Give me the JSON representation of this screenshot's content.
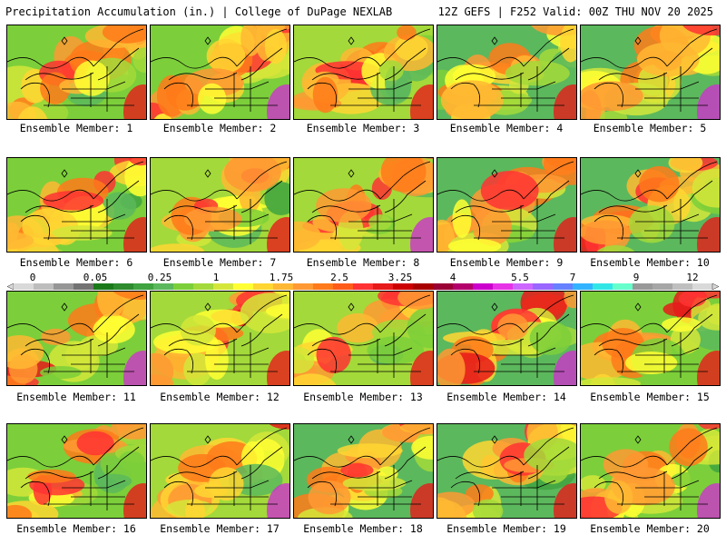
{
  "header": {
    "left": "Precipitation Accumulation (in.) | College of DuPage NEXLAB",
    "right": "12Z GEFS | F252 Valid: 00Z THU NOV 20 2025"
  },
  "colorbar": {
    "labels": [
      "0",
      "0.05",
      "0.25",
      "1",
      "1.75",
      "2.5",
      "3.25",
      "4",
      "5.5",
      "7",
      "9",
      "12"
    ],
    "colors": [
      "#d9d9d9",
      "#bdbdbd",
      "#969696",
      "#737373",
      "#1a7a1a",
      "#2e8b2e",
      "#3fa33f",
      "#5cb85c",
      "#7ccf3a",
      "#a3d93a",
      "#d4e63a",
      "#ffff33",
      "#ffd633",
      "#ffb833",
      "#ff9933",
      "#ff7a1a",
      "#ff5c1a",
      "#ff3333",
      "#e61a1a",
      "#cc0000",
      "#a80000",
      "#990033",
      "#b3006b",
      "#cc00cc",
      "#e633e6",
      "#cc66ff",
      "#9966ff",
      "#6680ff",
      "#33b3ff",
      "#33e6e6",
      "#66ffcc",
      "#999999",
      "#a6a6a6",
      "#bfbfbf",
      "#d9d9d9"
    ]
  },
  "members": [
    {
      "label": "Ensemble Member: 1",
      "n": 1
    },
    {
      "label": "Ensemble Member: 2",
      "n": 2
    },
    {
      "label": "Ensemble Member: 3",
      "n": 3
    },
    {
      "label": "Ensemble Member: 4",
      "n": 4
    },
    {
      "label": "Ensemble Member: 5",
      "n": 5
    },
    {
      "label": "Ensemble Member: 6",
      "n": 6
    },
    {
      "label": "Ensemble Member: 7",
      "n": 7
    },
    {
      "label": "Ensemble Member: 8",
      "n": 8
    },
    {
      "label": "Ensemble Member: 9",
      "n": 9
    },
    {
      "label": "Ensemble Member: 10",
      "n": 10
    },
    {
      "label": "Ensemble Member: 11",
      "n": 11
    },
    {
      "label": "Ensemble Member: 12",
      "n": 12
    },
    {
      "label": "Ensemble Member: 13",
      "n": 13
    },
    {
      "label": "Ensemble Member: 14",
      "n": 14
    },
    {
      "label": "Ensemble Member: 15",
      "n": 15
    },
    {
      "label": "Ensemble Member: 16",
      "n": 16
    },
    {
      "label": "Ensemble Member: 17",
      "n": 17
    },
    {
      "label": "Ensemble Member: 18",
      "n": 18
    },
    {
      "label": "Ensemble Member: 19",
      "n": 19
    },
    {
      "label": "Ensemble Member: 20",
      "n": 20
    }
  ]
}
